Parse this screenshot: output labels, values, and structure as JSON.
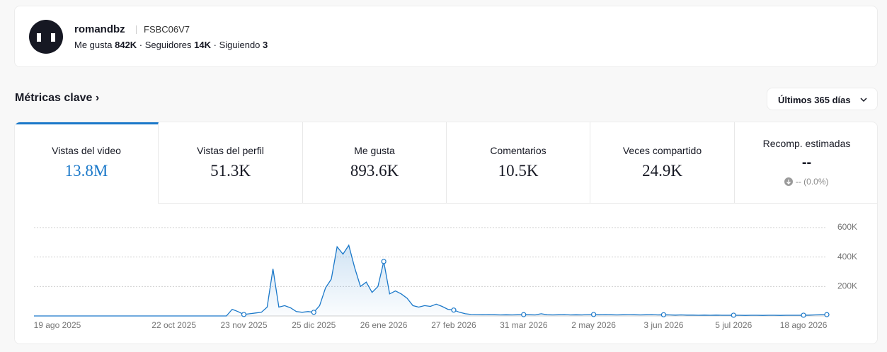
{
  "profile": {
    "name": "romandbz",
    "id": "FSBC06V7",
    "stats": [
      {
        "label": "Me gusta",
        "value": "842K"
      },
      {
        "label": "Seguidores",
        "value": "14K"
      },
      {
        "label": "Siguiendo",
        "value": "3"
      }
    ]
  },
  "section_title": "Métricas clave",
  "range": "Últimos 365 días",
  "metrics": [
    {
      "label": "Vistas del video",
      "value": "13.8M"
    },
    {
      "label": "Vistas del perfil",
      "value": "51.3K"
    },
    {
      "label": "Me gusta",
      "value": "893.6K"
    },
    {
      "label": "Comentarios",
      "value": "10.5K"
    },
    {
      "label": "Veces compartido",
      "value": "24.9K"
    },
    {
      "label": "Recomp. estimadas",
      "value": "--",
      "change": "-- (0.0%)"
    }
  ],
  "chart_data": {
    "type": "line",
    "color": "#1a78c9",
    "grid": true,
    "categories": [
      null,
      null,
      null,
      null,
      "19 ago 2025",
      null,
      null,
      null,
      null,
      null,
      null,
      null,
      null,
      null,
      null,
      null,
      null,
      null,
      null,
      null,
      null,
      null,
      null,
      null,
      "22 oct 2025",
      null,
      null,
      null,
      null,
      null,
      null,
      null,
      null,
      null,
      null,
      null,
      "23 nov 2025",
      null,
      null,
      null,
      null,
      null,
      null,
      null,
      null,
      null,
      null,
      null,
      "25 dic 2025",
      null,
      null,
      null,
      null,
      null,
      null,
      null,
      null,
      null,
      null,
      null,
      "26 ene 2026",
      null,
      null,
      null,
      null,
      null,
      null,
      null,
      null,
      null,
      null,
      null,
      "27 feb 2026",
      null,
      null,
      null,
      null,
      null,
      null,
      null,
      null,
      null,
      null,
      null,
      "31 mar 2026",
      null,
      null,
      null,
      null,
      null,
      null,
      null,
      null,
      null,
      null,
      null,
      "2 may 2026",
      null,
      null,
      null,
      null,
      null,
      null,
      null,
      null,
      null,
      null,
      null,
      "3 jun 2026",
      null,
      null,
      null,
      null,
      null,
      null,
      null,
      null,
      null,
      null,
      null,
      "5 jul 2026",
      null,
      null,
      null,
      null,
      null,
      null,
      null,
      null,
      null,
      null,
      null,
      "18 ago 2026",
      null,
      null,
      null,
      null
    ],
    "values": [
      0,
      0,
      0,
      0,
      0,
      0,
      0,
      0,
      0,
      0,
      0,
      0,
      0,
      0,
      0,
      0,
      0,
      0,
      0,
      0,
      0,
      0,
      0,
      0,
      0,
      0,
      0,
      0,
      0,
      0,
      0,
      0,
      0,
      0,
      45000,
      30000,
      10000,
      15000,
      20000,
      25000,
      60000,
      320000,
      60000,
      70000,
      55000,
      30000,
      25000,
      30000,
      25000,
      70000,
      190000,
      250000,
      470000,
      420000,
      480000,
      330000,
      200000,
      230000,
      160000,
      200000,
      370000,
      150000,
      170000,
      150000,
      120000,
      70000,
      60000,
      70000,
      65000,
      80000,
      65000,
      45000,
      40000,
      25000,
      15000,
      10000,
      9000,
      8000,
      9000,
      8000,
      7000,
      8000,
      7000,
      8000,
      9000,
      8000,
      7000,
      15000,
      8000,
      7000,
      8000,
      9000,
      7000,
      8000,
      7000,
      9000,
      10000,
      8000,
      9000,
      8000,
      7000,
      8000,
      9000,
      8000,
      7000,
      8000,
      9000,
      7000,
      8000,
      7000,
      6000,
      7000,
      6000,
      6000,
      5000,
      6000,
      5000,
      6000,
      5000,
      5000,
      5000,
      5000,
      4000,
      5000,
      5000,
      4000,
      5000,
      5000,
      4000,
      5000,
      5000,
      5000,
      5000,
      6000,
      7000,
      8000,
      9000
    ],
    "ylim": [
      0,
      600000
    ],
    "yticks": [
      {
        "value": 200000,
        "label": "200K"
      },
      {
        "value": 400000,
        "label": "400K"
      },
      {
        "value": 600000,
        "label": "600K"
      }
    ]
  }
}
